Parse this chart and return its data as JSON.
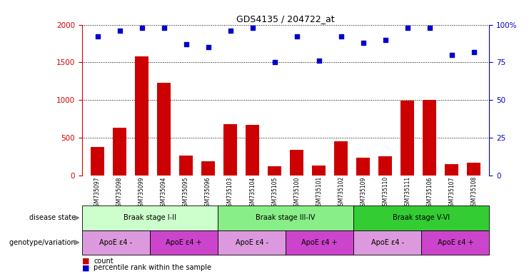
{
  "title": "GDS4135 / 204722_at",
  "samples": [
    "GSM735097",
    "GSM735098",
    "GSM735099",
    "GSM735094",
    "GSM735095",
    "GSM735096",
    "GSM735103",
    "GSM735104",
    "GSM735105",
    "GSM735100",
    "GSM735101",
    "GSM735102",
    "GSM735109",
    "GSM735110",
    "GSM735111",
    "GSM735106",
    "GSM735107",
    "GSM735108"
  ],
  "counts": [
    380,
    630,
    1580,
    1230,
    260,
    190,
    680,
    670,
    120,
    340,
    130,
    450,
    230,
    250,
    990,
    1000,
    150,
    170
  ],
  "percentiles": [
    92,
    96,
    98,
    98,
    87,
    85,
    96,
    98,
    75,
    92,
    76,
    92,
    88,
    90,
    98,
    98,
    80,
    82
  ],
  "bar_color": "#cc0000",
  "dot_color": "#0000cc",
  "ylim_left": [
    0,
    2000
  ],
  "ylim_right": [
    0,
    100
  ],
  "yticks_left": [
    0,
    500,
    1000,
    1500,
    2000
  ],
  "yticks_right": [
    0,
    25,
    50,
    75,
    100
  ],
  "ytick_labels_right": [
    "0",
    "25",
    "50",
    "75",
    "100%"
  ],
  "disease_state_groups": [
    {
      "label": "Braak stage I-II",
      "start": 0,
      "end": 6,
      "color": "#ccffcc"
    },
    {
      "label": "Braak stage III-IV",
      "start": 6,
      "end": 12,
      "color": "#88ee88"
    },
    {
      "label": "Braak stage V-VI",
      "start": 12,
      "end": 18,
      "color": "#33cc33"
    }
  ],
  "genotype_groups": [
    {
      "label": "ApoE ε4 -",
      "start": 0,
      "end": 3,
      "color": "#dd99dd"
    },
    {
      "label": "ApoE ε4 +",
      "start": 3,
      "end": 6,
      "color": "#cc44cc"
    },
    {
      "label": "ApoE ε4 -",
      "start": 6,
      "end": 9,
      "color": "#dd99dd"
    },
    {
      "label": "ApoE ε4 +",
      "start": 9,
      "end": 12,
      "color": "#cc44cc"
    },
    {
      "label": "ApoE ε4 -",
      "start": 12,
      "end": 15,
      "color": "#dd99dd"
    },
    {
      "label": "ApoE ε4 +",
      "start": 15,
      "end": 18,
      "color": "#cc44cc"
    }
  ],
  "disease_label": "disease state",
  "genotype_label": "genotype/variation",
  "legend_count": "count",
  "legend_pct": "percentile rank within the sample",
  "background_color": "#ffffff"
}
